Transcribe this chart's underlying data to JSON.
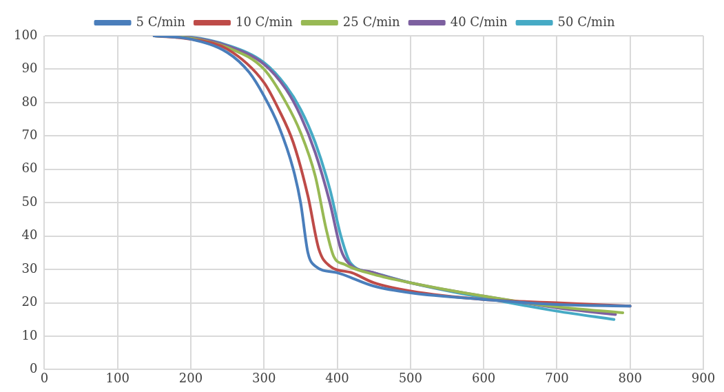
{
  "chart_data": {
    "type": "line",
    "legend": "top",
    "grid": true,
    "marker": "none",
    "line_style": "solid",
    "xlim": [
      0,
      900
    ],
    "xticks": [
      0,
      100,
      200,
      300,
      400,
      500,
      600,
      700,
      800,
      900
    ],
    "ylim": [
      0,
      100
    ],
    "yticks": [
      0,
      10,
      20,
      30,
      40,
      50,
      60,
      70,
      80,
      90,
      100
    ],
    "series": [
      {
        "name": "5 C/min",
        "color": "#4a7ebb",
        "x": [
          150,
          200,
          250,
          280,
          300,
          320,
          340,
          350,
          360,
          370,
          400,
          450,
          500,
          600,
          700,
          800
        ],
        "values": [
          100,
          99,
          95,
          89,
          82,
          73,
          60,
          50,
          35,
          31,
          29,
          25,
          23,
          21,
          19.5,
          19
        ]
      },
      {
        "name": "10 C/min",
        "color": "#be4b48",
        "x": [
          150,
          200,
          250,
          300,
          320,
          340,
          360,
          375,
          390,
          420,
          450,
          500,
          600,
          700,
          800
        ],
        "values": [
          100,
          99,
          96,
          86,
          78,
          68,
          52,
          36,
          31,
          29,
          26,
          23.5,
          21,
          20,
          19
        ]
      },
      {
        "name": "25 C/min",
        "color": "#98b954",
        "x": [
          150,
          200,
          250,
          300,
          330,
          350,
          370,
          385,
          395,
          410,
          450,
          500,
          600,
          700,
          790
        ],
        "values": [
          100,
          99.3,
          96.5,
          90,
          80,
          71,
          58,
          42,
          34,
          31.5,
          28.5,
          26,
          22,
          18.8,
          17
        ]
      },
      {
        "name": "40 C/min",
        "color": "#7d60a0",
        "x": [
          150,
          200,
          250,
          300,
          330,
          350,
          370,
          390,
          405,
          415,
          450,
          500,
          600,
          700,
          780
        ],
        "values": [
          100,
          99.5,
          97,
          91.5,
          84,
          76,
          65,
          50,
          36,
          32,
          29,
          26,
          22,
          18.5,
          16.5
        ]
      },
      {
        "name": "50 C/min",
        "color": "#46aac5",
        "x": [
          150,
          200,
          250,
          300,
          330,
          350,
          370,
          390,
          405,
          418,
          450,
          500,
          600,
          700,
          778
        ],
        "values": [
          100,
          99.6,
          97.2,
          92,
          85,
          78,
          68,
          54,
          40,
          32,
          29,
          26,
          21.5,
          17.5,
          15
        ]
      }
    ]
  }
}
